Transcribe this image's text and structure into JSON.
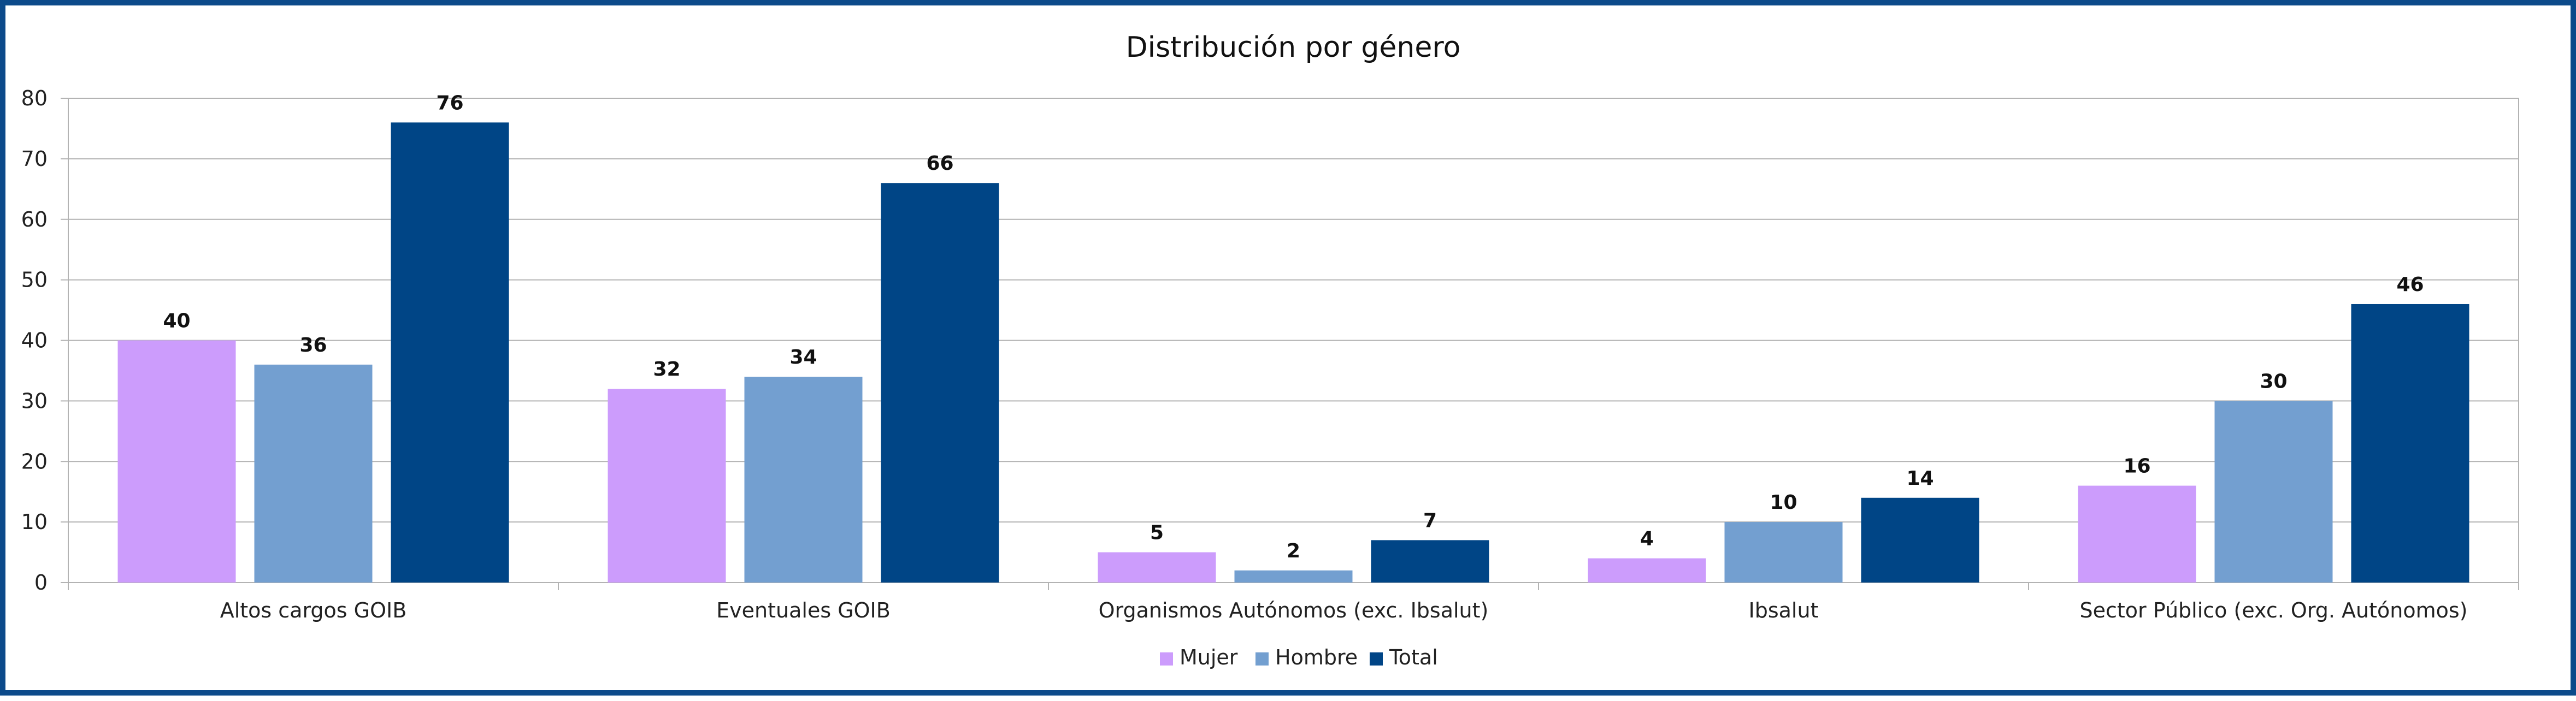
{
  "chart_data": {
    "type": "bar",
    "title": "Distribución por género",
    "xlabel": "",
    "ylabel": "",
    "ylim": [
      0,
      80
    ],
    "yticks": [
      0,
      10,
      20,
      30,
      40,
      50,
      60,
      70,
      80
    ],
    "grid": true,
    "legend_position": "bottom",
    "categories": [
      "Altos cargos GOIB",
      "Eventuales GOIB",
      "Organismos Autónomos (exc. Ibsalut)",
      "Ibsalut",
      "Sector Público (exc. Org. Autónomos)"
    ],
    "series": [
      {
        "name": "Mujer",
        "color": "#cc9cfc",
        "values": [
          40,
          32,
          5,
          4,
          16
        ]
      },
      {
        "name": "Hombre",
        "color": "#739fd0",
        "values": [
          36,
          34,
          2,
          10,
          30
        ]
      },
      {
        "name": "Total",
        "color": "#004586",
        "values": [
          76,
          66,
          7,
          14,
          46
        ]
      }
    ]
  }
}
